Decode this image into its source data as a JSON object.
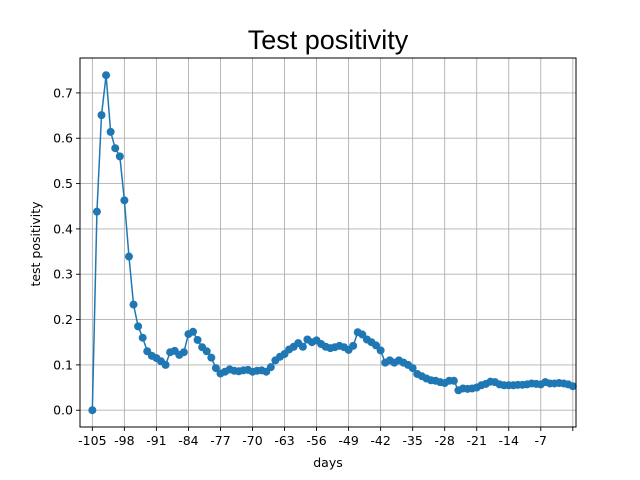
{
  "chart_data": {
    "type": "line",
    "title": "Test positivity",
    "xlabel": "days",
    "ylabel": "test positivity",
    "xlim": [
      -107.7,
      0.7
    ],
    "ylim": [
      -0.037,
      0.777
    ],
    "grid": true,
    "markers": true,
    "color": "#1f77b4",
    "x_ticks": [
      -105,
      -98,
      -91,
      -84,
      -77,
      -70,
      -63,
      -56,
      -49,
      -42,
      -35,
      -28,
      -21,
      -14,
      -7,
      0
    ],
    "x_tick_labels": [
      "-105",
      "-98",
      "-91",
      "-84",
      "-77",
      "-70",
      "-63",
      "-56",
      "-49",
      "-42",
      "-35",
      "-28",
      "-21",
      "-14",
      "-7",
      ""
    ],
    "y_ticks": [
      0.0,
      0.1,
      0.2,
      0.3,
      0.4,
      0.5,
      0.6,
      0.7
    ],
    "y_tick_labels": [
      "0.0",
      "0.1",
      "0.2",
      "0.3",
      "0.4",
      "0.5",
      "0.6",
      "0.7"
    ],
    "series": [
      {
        "x": [
          -105,
          -104,
          -103,
          -102,
          -101,
          -100,
          -99,
          -98,
          -97,
          -96,
          -95,
          -94,
          -93,
          -92,
          -91,
          -90,
          -89,
          -88,
          -87,
          -86,
          -85,
          -84,
          -83,
          -82,
          -81,
          -80,
          -79,
          -78,
          -77,
          -76,
          -75,
          -74,
          -73,
          -72,
          -71,
          -70,
          -69,
          -68,
          -67,
          -66,
          -65,
          -64,
          -63,
          -62,
          -61,
          -60,
          -59,
          -58,
          -57,
          -56,
          -55,
          -54,
          -53,
          -52,
          -51,
          -50,
          -49,
          -48,
          -47,
          -46,
          -45,
          -44,
          -43,
          -42,
          -41,
          -40,
          -39,
          -38,
          -37,
          -36,
          -35,
          -34,
          -33,
          -32,
          -31,
          -30,
          -29,
          -28,
          -27,
          -26,
          -25,
          -24,
          -23,
          -22,
          -21,
          -20,
          -19,
          -18,
          -17,
          -16,
          -15,
          -14,
          -13,
          -12,
          -11,
          -10,
          -9,
          -8,
          -7,
          -6,
          -5,
          -4,
          -3,
          -2,
          -1,
          0
        ],
        "y": [
          0.0,
          0.438,
          0.651,
          0.739,
          0.614,
          0.578,
          0.56,
          0.463,
          0.339,
          0.233,
          0.185,
          0.16,
          0.13,
          0.12,
          0.115,
          0.108,
          0.1,
          0.128,
          0.131,
          0.122,
          0.128,
          0.168,
          0.173,
          0.155,
          0.139,
          0.13,
          0.116,
          0.093,
          0.081,
          0.085,
          0.09,
          0.087,
          0.086,
          0.088,
          0.089,
          0.085,
          0.087,
          0.088,
          0.085,
          0.095,
          0.11,
          0.118,
          0.124,
          0.134,
          0.14,
          0.148,
          0.14,
          0.156,
          0.15,
          0.154,
          0.146,
          0.14,
          0.137,
          0.139,
          0.142,
          0.139,
          0.133,
          0.142,
          0.172,
          0.167,
          0.156,
          0.15,
          0.143,
          0.132,
          0.105,
          0.11,
          0.105,
          0.11,
          0.105,
          0.1,
          0.093,
          0.08,
          0.075,
          0.07,
          0.066,
          0.065,
          0.062,
          0.06,
          0.065,
          0.065,
          0.044,
          0.048,
          0.047,
          0.048,
          0.05,
          0.055,
          0.058,
          0.063,
          0.062,
          0.057,
          0.055,
          0.055,
          0.055,
          0.056,
          0.056,
          0.057,
          0.059,
          0.058,
          0.057,
          0.062,
          0.059,
          0.059,
          0.06,
          0.059,
          0.057,
          0.053
        ]
      }
    ]
  }
}
